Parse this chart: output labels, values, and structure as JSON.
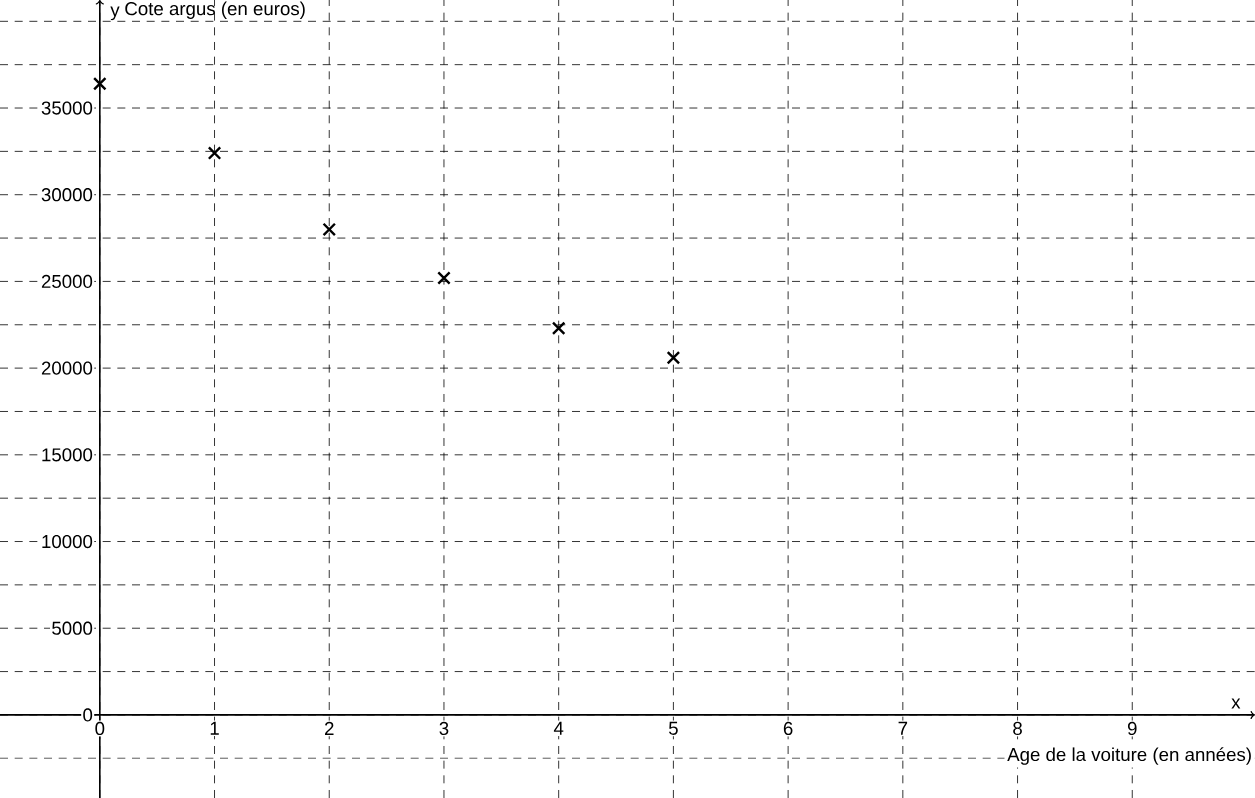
{
  "chart_data": {
    "type": "scatter",
    "ylabel": "Cote argus (en euros)",
    "xlabel": "Age de la voiture (en années)",
    "annotations": [
      "y",
      "x"
    ],
    "x": [
      0,
      1,
      2,
      3,
      4,
      5
    ],
    "values": [
      36400,
      32400,
      28000,
      25200,
      22300,
      20600
    ],
    "color": "#000000",
    "marker": "cross",
    "grid": true,
    "xlim": [
      -0.87,
      10.07
    ],
    "ylim": [
      -4790,
      41230
    ],
    "xticks": [
      0,
      1,
      2,
      3,
      4,
      5,
      6,
      7,
      8,
      9
    ],
    "yticks": [
      {
        "value": -2500,
        "label": null
      },
      0,
      {
        "value": 2500,
        "label": null
      },
      5000,
      {
        "value": 7500,
        "label": null
      },
      10000,
      {
        "value": 12500,
        "label": null
      },
      15000,
      {
        "value": 17500,
        "label": null
      },
      20000,
      {
        "value": 22500,
        "label": null
      },
      25000,
      {
        "value": 27500,
        "label": null
      },
      30000,
      {
        "value": 32500,
        "label": null
      },
      35000,
      {
        "value": 37500,
        "label": null
      },
      {
        "value": 40000,
        "label": null
      }
    ]
  }
}
